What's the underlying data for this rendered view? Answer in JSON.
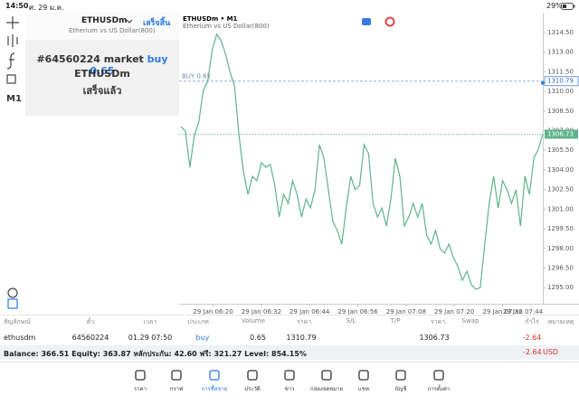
{
  "status_bar": {
    "time": "14:50",
    "date": "ศ. 29 ม.ค.",
    "battery": "29%"
  },
  "sidebar": {
    "timeframe": "M1"
  },
  "order_panel": {
    "symbol": "ETHUSDm",
    "done": "เสร็จสิ้น",
    "description": "Etherium vs US Dollar(800)",
    "message_prefix": "#64560224 market",
    "message_action": "buy 0.65",
    "message_symbol": "ETHUSDm",
    "message_status": "เสร็จแล้ว"
  },
  "chart_data": {
    "type": "line",
    "title": "ETHUSDm • M1",
    "subtitle": "Etherium vs US Dollar(800)",
    "color": "#5fb38d",
    "values": [
      1307.31,
      1306.97,
      1304.2,
      1306.62,
      1307.66,
      1310.08,
      1310.77,
      1313.19,
      1314.36,
      1313.88,
      1312.84,
      1311.46,
      1310.42,
      1306.62,
      1303.86,
      1302.13,
      1303.51,
      1303.17,
      1304.55,
      1304.2,
      1304.41,
      1302.82,
      1300.4,
      1302.13,
      1301.44,
      1303.17,
      1302.13,
      1300.4,
      1301.78,
      1301.09,
      1302.48,
      1305.93,
      1304.89,
      1302.48,
      1300.06,
      1299.37,
      1298.33,
      1301.09,
      1303.51,
      1302.48,
      1302.82,
      1305.93,
      1305.24,
      1301.44,
      1300.4,
      1301.09,
      1299.71,
      1301.78,
      1304.89,
      1303.51,
      1299.71,
      1300.4,
      1301.44,
      1300.4,
      1301.44,
      1299.02,
      1298.33,
      1299.37,
      1297.98,
      1297.64,
      1298.33,
      1297.29,
      1296.6,
      1295.56,
      1296.26,
      1295.22,
      1294.87,
      1295.01,
      1298.33,
      1301.44,
      1303.51,
      1301.09,
      1303.17,
      1302.48,
      1301.44,
      1302.48,
      1299.71,
      1303.51,
      1302.13,
      1304.89,
      1305.59,
      1306.76
    ],
    "ylim": [
      1293.77,
      1316.02
    ],
    "yticks": [
      {
        "value": 1314.5,
        "label": "1314.50"
      },
      {
        "value": 1313,
        "label": "1313.00"
      },
      {
        "value": 1311.5,
        "label": "1311.50"
      },
      {
        "value": 1310,
        "label": "1310.00"
      },
      {
        "value": 1308.5,
        "label": "1308.50"
      },
      {
        "value": 1307,
        "label": "1307.00"
      },
      {
        "value": 1305.5,
        "label": "1305.50"
      },
      {
        "value": 1304,
        "label": "1304.00"
      },
      {
        "value": 1302.5,
        "label": "1302.50"
      },
      {
        "value": 1301,
        "label": "1301.00"
      },
      {
        "value": 1299.5,
        "label": "1299.50"
      },
      {
        "value": 1298,
        "label": "1298.00"
      },
      {
        "value": 1296.5,
        "label": "1296.50"
      },
      {
        "value": 1295,
        "label": "1295.00"
      }
    ],
    "xticks": [
      {
        "value": 7.2,
        "label": "29 Jan 06:20"
      },
      {
        "value": 18,
        "label": "29 Jan 06:32"
      },
      {
        "value": 28.8,
        "label": "29 Jan 06:44"
      },
      {
        "value": 39.6,
        "label": "29 Jan 06:56"
      },
      {
        "value": 50.4,
        "label": "29 Jan 07:08"
      },
      {
        "value": 61.2,
        "label": "29 Jan 07:20"
      },
      {
        "value": 72,
        "label": "29 Jan 07:32"
      },
      {
        "value": 82.8,
        "label": "29 Jan 07:44"
      }
    ],
    "order_line": {
      "label": "BUY 0.65",
      "value": 1310.79
    },
    "price_line": {
      "value": 1306.73
    }
  },
  "table": {
    "headers": [
      "สัญลักษณ์",
      "ตั๋ว",
      "เวลา",
      "ประเภท",
      "Volume",
      "ราคา",
      "S/L",
      "T/P",
      "ราคา",
      "Swap",
      "กำไร",
      "หมายเหตุ"
    ],
    "row": {
      "symbol": "ethusdm",
      "ticket": "64560224",
      "time": "01.29 07:50",
      "type": "buy",
      "volume": "0.65",
      "price_open": "1310.79",
      "price_current": "1306.73",
      "profit": "-2.64"
    }
  },
  "balance": {
    "text": "Balance: 366.51 Equity: 363.87 หลักประกัน: 42.60 ฟรี: 321.27 Level: 854.15%",
    "profit": "-2.64",
    "currency": "USD"
  },
  "nav": [
    "ราคา",
    "กราฟ",
    "การซื้อขาย",
    "ประวัติ",
    "ข่าว",
    "กล่องจดหมาย",
    "แชท",
    "บัญชี",
    "การตั้งค่า"
  ]
}
